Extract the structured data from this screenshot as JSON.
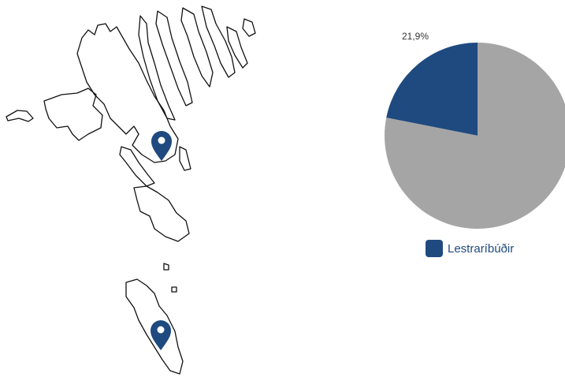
{
  "chart_data": {
    "type": "pie",
    "categories": [
      "Lestraríbúðir",
      null
    ],
    "values": [
      21.9,
      78.1
    ],
    "value_labels": [
      "21,9%",
      null
    ],
    "colors": [
      "#1f4a7f",
      "#a5a5a5"
    ],
    "legend": "bottom"
  }
}
